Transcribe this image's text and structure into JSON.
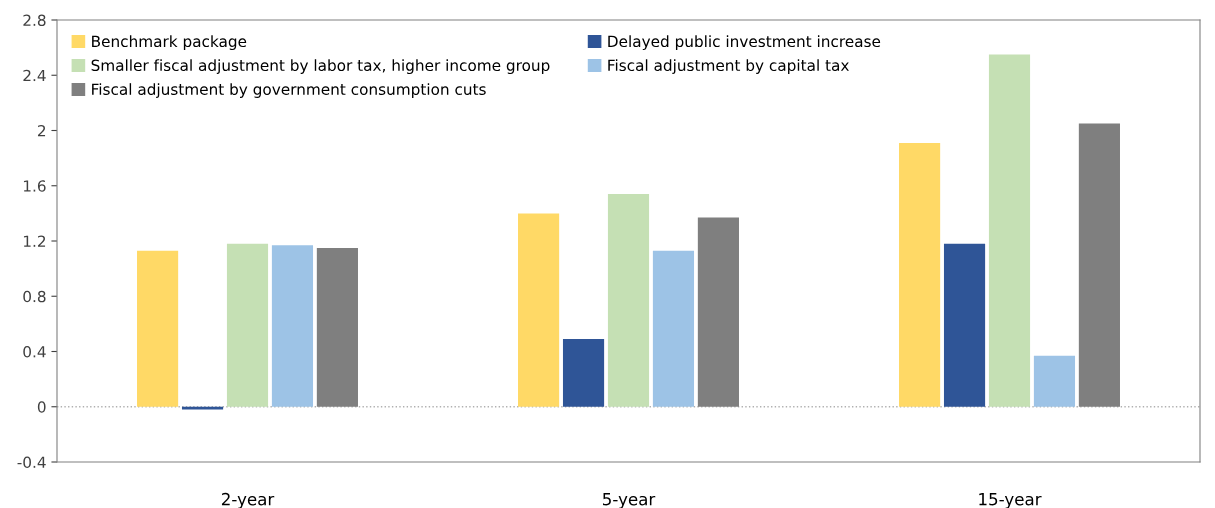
{
  "chart_data": {
    "type": "bar",
    "categories": [
      "2-year",
      "5-year",
      "15-year"
    ],
    "series": [
      {
        "name": "Benchmark package",
        "color": "#ffd966",
        "values": [
          1.13,
          1.4,
          1.91
        ]
      },
      {
        "name": "Delayed public investment increase",
        "color": "#2f5597",
        "values": [
          -0.02,
          0.49,
          1.18
        ]
      },
      {
        "name": "Smaller fiscal adjustment by labor tax, higher income group",
        "color": "#c5e0b4",
        "values": [
          1.18,
          1.54,
          2.55
        ]
      },
      {
        "name": "Fiscal adjustment by capital tax",
        "color": "#9dc3e6",
        "values": [
          1.17,
          1.13,
          0.37
        ]
      },
      {
        "name": "Fiscal adjustment by government consumption cuts",
        "color": "#7f7f7f",
        "values": [
          1.15,
          1.37,
          2.05
        ]
      }
    ],
    "ylim": [
      -0.4,
      2.8
    ],
    "yticks": [
      -0.4,
      0,
      0.4,
      0.8,
      1.2,
      1.6,
      2,
      2.4,
      2.8
    ],
    "ref_lines": [
      {
        "axis": "y",
        "value": 0,
        "color": "#b0b0b0",
        "line_style": "dotted"
      }
    ],
    "legend": "top left"
  }
}
